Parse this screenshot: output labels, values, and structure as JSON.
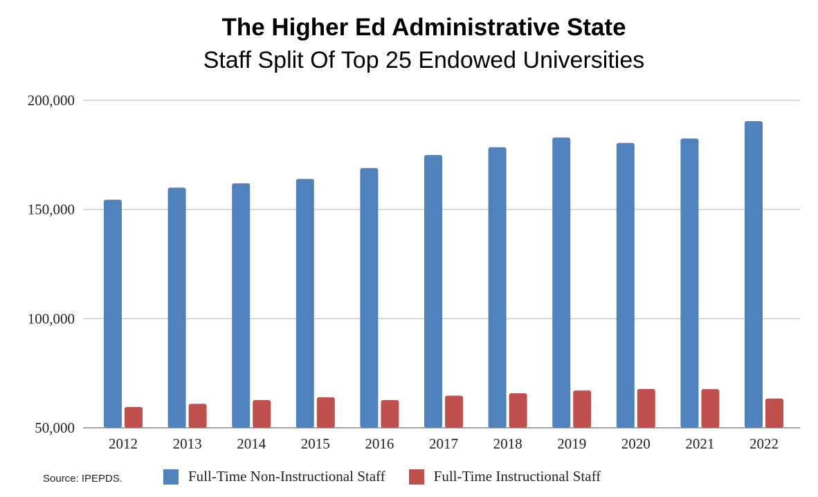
{
  "chart_data": {
    "type": "bar",
    "title": "The Higher Ed Administrative State",
    "subtitle": "Staff Split Of Top 25 Endowed Universities",
    "categories": [
      "2012",
      "2013",
      "2014",
      "2015",
      "2016",
      "2017",
      "2018",
      "2019",
      "2020",
      "2021",
      "2022"
    ],
    "series": [
      {
        "name": "Full-Time Non-Instructional Staff",
        "color": "#4f81bd",
        "values": [
          154500,
          160000,
          162000,
          164000,
          169000,
          175000,
          178500,
          183000,
          180500,
          182500,
          190500
        ]
      },
      {
        "name": "Full-Time Instructional Staff",
        "color": "#c0504d",
        "values": [
          59500,
          61000,
          62700,
          64000,
          62700,
          64700,
          65800,
          67100,
          67800,
          67700,
          63400
        ]
      }
    ],
    "yticks": [
      50000,
      100000,
      150000,
      200000
    ],
    "ytick_labels": [
      "50,000",
      "100,000",
      "150,000",
      "200,000"
    ],
    "ylim": [
      50000,
      200000
    ],
    "grid": true,
    "legend_position": "bottom"
  },
  "source": "Source: IPEPDS."
}
